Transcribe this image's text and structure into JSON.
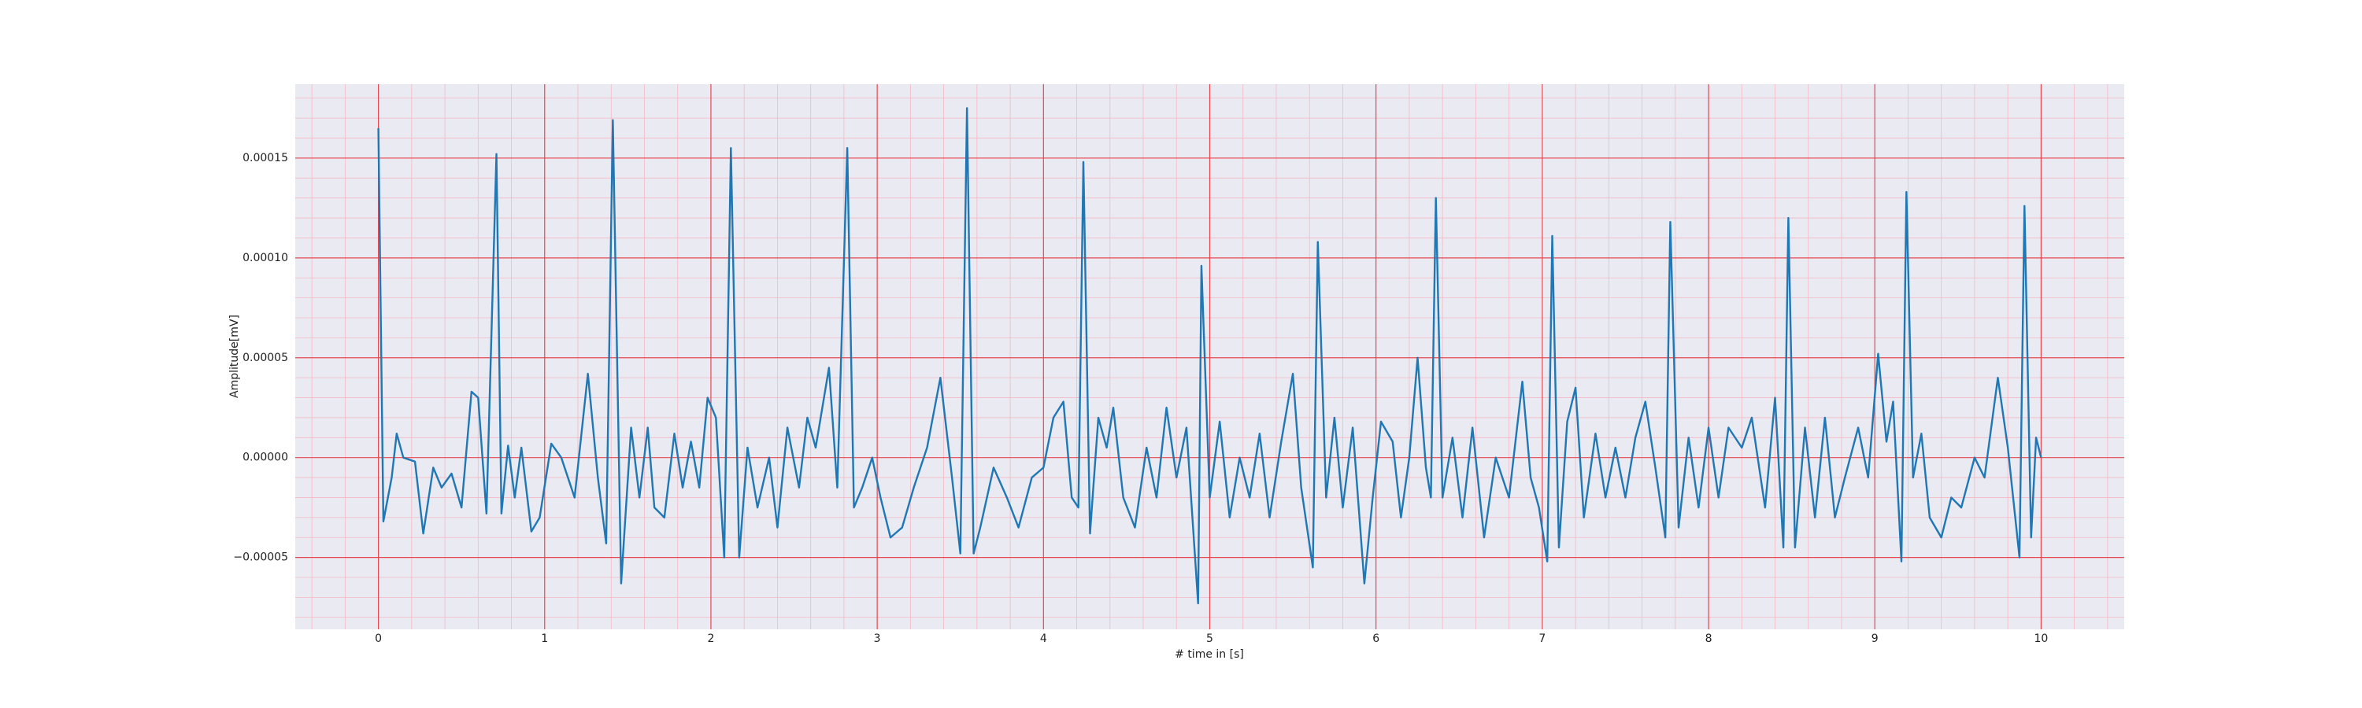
{
  "chart_data": {
    "type": "line",
    "xlabel": "# time in [s]",
    "ylabel": "Amplitude[mV]",
    "color": "#1f77b4",
    "grid": true,
    "minor_grid": true,
    "xlim": [
      -0.5,
      10.5
    ],
    "xticks": [
      0,
      1,
      2,
      3,
      4,
      5,
      6,
      7,
      8,
      9,
      10
    ],
    "ylim": [
      -8.6e-05,
      0.000187
    ],
    "yticks": [
      {
        "value": -5e-05,
        "label": "−0.00005"
      },
      {
        "value": 0,
        "label": "0.00000"
      },
      {
        "value": 5e-05,
        "label": "0.00005"
      },
      {
        "value": 0.0001,
        "label": "0.00010"
      },
      {
        "value": 0.00015,
        "label": "0.00015"
      }
    ],
    "x": [
      0.0,
      0.03,
      0.08,
      0.11,
      0.15,
      0.22,
      0.27,
      0.33,
      0.38,
      0.44,
      0.5,
      0.56,
      0.6,
      0.65,
      0.71,
      0.74,
      0.78,
      0.82,
      0.86,
      0.92,
      0.97,
      1.04,
      1.1,
      1.18,
      1.26,
      1.32,
      1.37,
      1.41,
      1.46,
      1.52,
      1.57,
      1.62,
      1.66,
      1.72,
      1.78,
      1.83,
      1.88,
      1.93,
      1.98,
      2.03,
      2.08,
      2.12,
      2.17,
      2.22,
      2.28,
      2.35,
      2.4,
      2.46,
      2.53,
      2.58,
      2.63,
      2.71,
      2.76,
      2.82,
      2.86,
      2.91,
      2.97,
      3.02,
      3.08,
      3.15,
      3.22,
      3.3,
      3.38,
      3.45,
      3.5,
      3.54,
      3.58,
      3.62,
      3.7,
      3.78,
      3.85,
      3.93,
      4.0,
      4.06,
      4.12,
      4.17,
      4.21,
      4.24,
      4.28,
      4.33,
      4.38,
      4.42,
      4.48,
      4.55,
      4.62,
      4.68,
      4.74,
      4.8,
      4.86,
      4.93,
      4.95,
      5.0,
      5.06,
      5.12,
      5.18,
      5.24,
      5.3,
      5.36,
      5.43,
      5.5,
      5.55,
      5.62,
      5.65,
      5.7,
      5.75,
      5.8,
      5.86,
      5.93,
      5.98,
      6.03,
      6.1,
      6.15,
      6.2,
      6.25,
      6.3,
      6.33,
      6.36,
      6.4,
      6.46,
      6.52,
      6.58,
      6.65,
      6.72,
      6.8,
      6.88,
      6.93,
      6.98,
      7.03,
      7.06,
      7.1,
      7.15,
      7.2,
      7.25,
      7.32,
      7.38,
      7.44,
      7.5,
      7.56,
      7.62,
      7.68,
      7.74,
      7.77,
      7.82,
      7.88,
      7.94,
      8.0,
      8.06,
      8.12,
      8.2,
      8.26,
      8.34,
      8.4,
      8.45,
      8.48,
      8.52,
      8.58,
      8.64,
      8.7,
      8.76,
      8.82,
      8.9,
      8.96,
      9.02,
      9.07,
      9.11,
      9.16,
      9.19,
      9.23,
      9.28,
      9.33,
      9.4,
      9.46,
      9.52,
      9.6,
      9.66,
      9.74,
      9.8,
      9.87,
      9.9,
      9.94,
      9.97,
      10.0
    ],
    "values": [
      0.000165,
      -3.2e-05,
      -1e-05,
      1.2e-05,
      0.0,
      -2e-06,
      -3.8e-05,
      -5e-06,
      -1.5e-05,
      -8e-06,
      -2.5e-05,
      3.3e-05,
      3e-05,
      -2.8e-05,
      0.000152,
      -2.8e-05,
      6e-06,
      -2e-05,
      5e-06,
      -3.7e-05,
      -3e-05,
      7e-06,
      0.0,
      -2e-05,
      4.2e-05,
      -1e-05,
      -4.3e-05,
      0.000169,
      -6.3e-05,
      1.5e-05,
      -2e-05,
      1.5e-05,
      -2.5e-05,
      -3e-05,
      1.2e-05,
      -1.5e-05,
      8e-06,
      -1.5e-05,
      3e-05,
      2e-05,
      -5e-05,
      0.000155,
      -5e-05,
      5e-06,
      -2.5e-05,
      0.0,
      -3.5e-05,
      1.5e-05,
      -1.5e-05,
      2e-05,
      5e-06,
      4.5e-05,
      -1.5e-05,
      0.000155,
      -2.5e-05,
      -1.5e-05,
      0.0,
      -2e-05,
      -4e-05,
      -3.5e-05,
      -1.5e-05,
      5e-06,
      4e-05,
      -1e-05,
      -4.8e-05,
      0.000175,
      -4.8e-05,
      -3.5e-05,
      -5e-06,
      -2e-05,
      -3.5e-05,
      -1e-05,
      -5e-06,
      2e-05,
      2.8e-05,
      -2e-05,
      -2.5e-05,
      0.000148,
      -3.8e-05,
      2e-05,
      5e-06,
      2.5e-05,
      -2e-05,
      -3.5e-05,
      5e-06,
      -2e-05,
      2.5e-05,
      -1e-05,
      1.5e-05,
      -7.3e-05,
      9.6e-05,
      -2e-05,
      1.8e-05,
      -3e-05,
      0.0,
      -2e-05,
      1.2e-05,
      -3e-05,
      8e-06,
      4.2e-05,
      -1.5e-05,
      -5.5e-05,
      0.000108,
      -2e-05,
      2e-05,
      -2.5e-05,
      1.5e-05,
      -6.3e-05,
      -2e-05,
      1.8e-05,
      8e-06,
      -3e-05,
      0.0,
      5e-05,
      -5e-06,
      -2e-05,
      0.00013,
      -2e-05,
      1e-05,
      -3e-05,
      1.5e-05,
      -4e-05,
      0.0,
      -2e-05,
      3.8e-05,
      -1e-05,
      -2.5e-05,
      -5.2e-05,
      0.000111,
      -4.5e-05,
      1.8e-05,
      3.5e-05,
      -3e-05,
      1.2e-05,
      -2e-05,
      5e-06,
      -2e-05,
      1e-05,
      2.8e-05,
      -5e-06,
      -4e-05,
      0.000118,
      -3.5e-05,
      1e-05,
      -2.5e-05,
      1.5e-05,
      -2e-05,
      1.5e-05,
      5e-06,
      2e-05,
      -2.5e-05,
      3e-05,
      -4.5e-05,
      0.00012,
      -4.5e-05,
      1.5e-05,
      -3e-05,
      2e-05,
      -3e-05,
      -1e-05,
      1.5e-05,
      -1e-05,
      5.2e-05,
      8e-06,
      2.8e-05,
      -5.2e-05,
      0.000133,
      -1e-05,
      1.2e-05,
      -3e-05,
      -4e-05,
      -2e-05,
      -2.5e-05,
      0.0,
      -1e-05,
      4e-05,
      5e-06,
      -5e-05,
      0.000126,
      -4e-05,
      1e-05,
      0.0
    ]
  }
}
